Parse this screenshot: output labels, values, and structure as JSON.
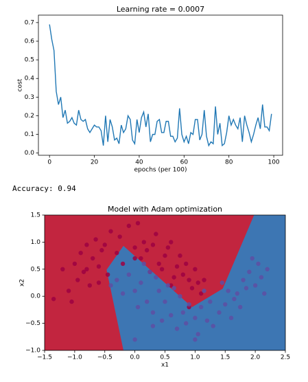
{
  "chart_data": [
    {
      "type": "line",
      "title": "Learning rate = 0.0007",
      "xlabel": "epochs (per 100)",
      "ylabel": "cost",
      "series": [
        {
          "color": "#1f77b4",
          "x": [
            0,
            1,
            2,
            3,
            4,
            5,
            6,
            7,
            8,
            9,
            10,
            11,
            12,
            13,
            14,
            15,
            16,
            17,
            18,
            19,
            20,
            21,
            22,
            23,
            24,
            25,
            26,
            27,
            28,
            29,
            30,
            31,
            32,
            33,
            34,
            35,
            36,
            37,
            38,
            39,
            40,
            41,
            42,
            43,
            44,
            45,
            46,
            47,
            48,
            49,
            50,
            51,
            52,
            53,
            54,
            55,
            56,
            57,
            58,
            59,
            60,
            61,
            62,
            63,
            64,
            65,
            66,
            67,
            68,
            69,
            70,
            71,
            72,
            73,
            74,
            75,
            76,
            77,
            78,
            79,
            80,
            81,
            82,
            83,
            84,
            85,
            86,
            87,
            88,
            89,
            90,
            91,
            92,
            93,
            94,
            95,
            96,
            97,
            98,
            99
          ],
          "values": [
            0.69,
            0.61,
            0.55,
            0.33,
            0.26,
            0.3,
            0.19,
            0.23,
            0.16,
            0.17,
            0.19,
            0.16,
            0.15,
            0.23,
            0.18,
            0.17,
            0.18,
            0.13,
            0.11,
            0.13,
            0.15,
            0.14,
            0.14,
            0.12,
            0.04,
            0.2,
            0.06,
            0.18,
            0.14,
            0.07,
            0.08,
            0.05,
            0.15,
            0.11,
            0.13,
            0.2,
            0.18,
            0.07,
            0.05,
            0.18,
            0.11,
            0.19,
            0.22,
            0.14,
            0.21,
            0.06,
            0.1,
            0.1,
            0.17,
            0.18,
            0.11,
            0.11,
            0.17,
            0.17,
            0.09,
            0.09,
            0.06,
            0.08,
            0.24,
            0.1,
            0.06,
            0.09,
            0.05,
            0.11,
            0.1,
            0.18,
            0.18,
            0.07,
            0.1,
            0.23,
            0.09,
            0.04,
            0.06,
            0.05,
            0.25,
            0.1,
            0.16,
            0.04,
            0.05,
            0.11,
            0.2,
            0.15,
            0.18,
            0.15,
            0.13,
            0.19,
            0.06,
            0.2,
            0.15,
            0.11,
            0.06,
            0.1,
            0.15,
            0.19,
            0.13,
            0.26,
            0.14,
            0.14,
            0.12,
            0.21
          ]
        }
      ],
      "xlim": [
        -4.95,
        103.95
      ],
      "xticks": [
        0,
        20,
        40,
        60,
        80,
        100
      ],
      "ylim": [
        -0.012,
        0.74
      ],
      "yticks": [
        {
          "value": 0,
          "label": "0.0"
        },
        0.1,
        0.2,
        0.3,
        0.4,
        0.5,
        0.6,
        0.7
      ]
    },
    {
      "type": "decision_boundary",
      "title": "Model with Adam optimization",
      "xlabel": "x1",
      "ylabel": "x2",
      "region_colors": [
        "#c2253f",
        "#3d76b3"
      ],
      "boundary": {
        "x": [
          -0.19,
          -0.47,
          -0.19,
          0.95,
          1.46,
          1.98
        ],
        "y": [
          -1.0,
          0.49,
          0.93,
          -0.2,
          0.14,
          1.5
        ]
      },
      "series": [
        {
          "color": "#9e0142",
          "x": [
            -1.2,
            -1.1,
            -1.0,
            -0.95,
            -0.9,
            -0.85,
            -0.8,
            -0.75,
            -0.7,
            -0.65,
            -0.6,
            -0.55,
            -0.5,
            -0.45,
            -0.4,
            -0.3,
            -0.25,
            -0.2,
            -0.1,
            0.0,
            0.05,
            0.1,
            0.15,
            0.2,
            0.3,
            0.35,
            0.4,
            0.5,
            0.55,
            0.6,
            0.7,
            0.75,
            0.8,
            0.85,
            0.9,
            0.95,
            1.0,
            1.05,
            1.1,
            0.65,
            -1.35,
            -1.05,
            -0.6,
            0.25,
            0.45,
            0.9,
            1.15,
            -0.8,
            0.0,
            0.6
          ],
          "y": [
            0.5,
            0.1,
            0.6,
            0.3,
            0.8,
            0.45,
            0.95,
            0.2,
            0.7,
            1.05,
            0.55,
            0.85,
            0.95,
            0.4,
            1.2,
            0.8,
            1.1,
            0.6,
            1.3,
            0.9,
            1.35,
            0.7,
            1.0,
            0.85,
            0.95,
            1.15,
            0.6,
            0.75,
            0.9,
            1.0,
            0.55,
            0.75,
            0.4,
            0.6,
            0.3,
            0.15,
            0.5,
            0.25,
            0.05,
            0.35,
            -0.05,
            -0.1,
            0.25,
            0.45,
            0.5,
            -0.2,
            0.3,
            0.5,
            0.7,
            0.2
          ]
        },
        {
          "color": "#5e4fa2",
          "x": [
            -0.3,
            -0.2,
            -0.1,
            0.0,
            0.05,
            0.1,
            0.2,
            0.25,
            0.3,
            0.4,
            0.45,
            0.5,
            0.6,
            0.65,
            0.7,
            0.8,
            0.85,
            0.9,
            1.0,
            1.05,
            1.1,
            1.2,
            1.25,
            1.3,
            1.4,
            1.5,
            1.55,
            1.6,
            1.7,
            1.75,
            1.8,
            1.85,
            1.9,
            2.0,
            2.05,
            2.1,
            2.2,
            1.95,
            0.15,
            0.35,
            0.55,
            0.75,
            1.15,
            1.45,
            1.65,
            -0.4,
            0.0,
            0.3,
            1.0,
            2.15
          ],
          "y": [
            0.3,
            0.05,
            0.4,
            0.1,
            -0.2,
            0.25,
            -0.1,
            0.45,
            -0.3,
            0.1,
            -0.45,
            -0.1,
            -0.35,
            0.15,
            -0.6,
            -0.3,
            -0.5,
            -0.15,
            -0.4,
            -0.7,
            -0.2,
            -0.45,
            -0.1,
            -0.55,
            -0.3,
            -0.15,
            0.1,
            -0.4,
            0.05,
            -0.2,
            0.3,
            0.15,
            0.45,
            0.2,
            0.6,
            0.35,
            0.5,
            0.7,
            0.6,
            0.35,
            0.2,
            0.0,
            0.1,
            0.25,
            -0.05,
            0.2,
            -0.8,
            -0.55,
            -0.8,
            0.05
          ]
        }
      ],
      "xlim": [
        -1.5,
        2.5
      ],
      "xticks": [
        {
          "value": -1.5,
          "label": "−1.5"
        },
        {
          "value": -1.0,
          "label": "−1.0"
        },
        {
          "value": -0.5,
          "label": "−0.5"
        },
        {
          "value": 0,
          "label": "0.0"
        },
        0.5,
        {
          "value": 1,
          "label": "1.0"
        },
        1.5,
        {
          "value": 2,
          "label": "2.0"
        },
        2.5
      ],
      "ylim": [
        -1.0,
        1.5
      ],
      "yticks": [
        {
          "value": -1.0,
          "label": "−1.0"
        },
        {
          "value": -0.5,
          "label": "−0.5"
        },
        {
          "value": 0,
          "label": "0.0"
        },
        0.5,
        {
          "value": 1,
          "label": "1.0"
        },
        1.5
      ]
    }
  ],
  "output_text": "Accuracy: 0.94"
}
